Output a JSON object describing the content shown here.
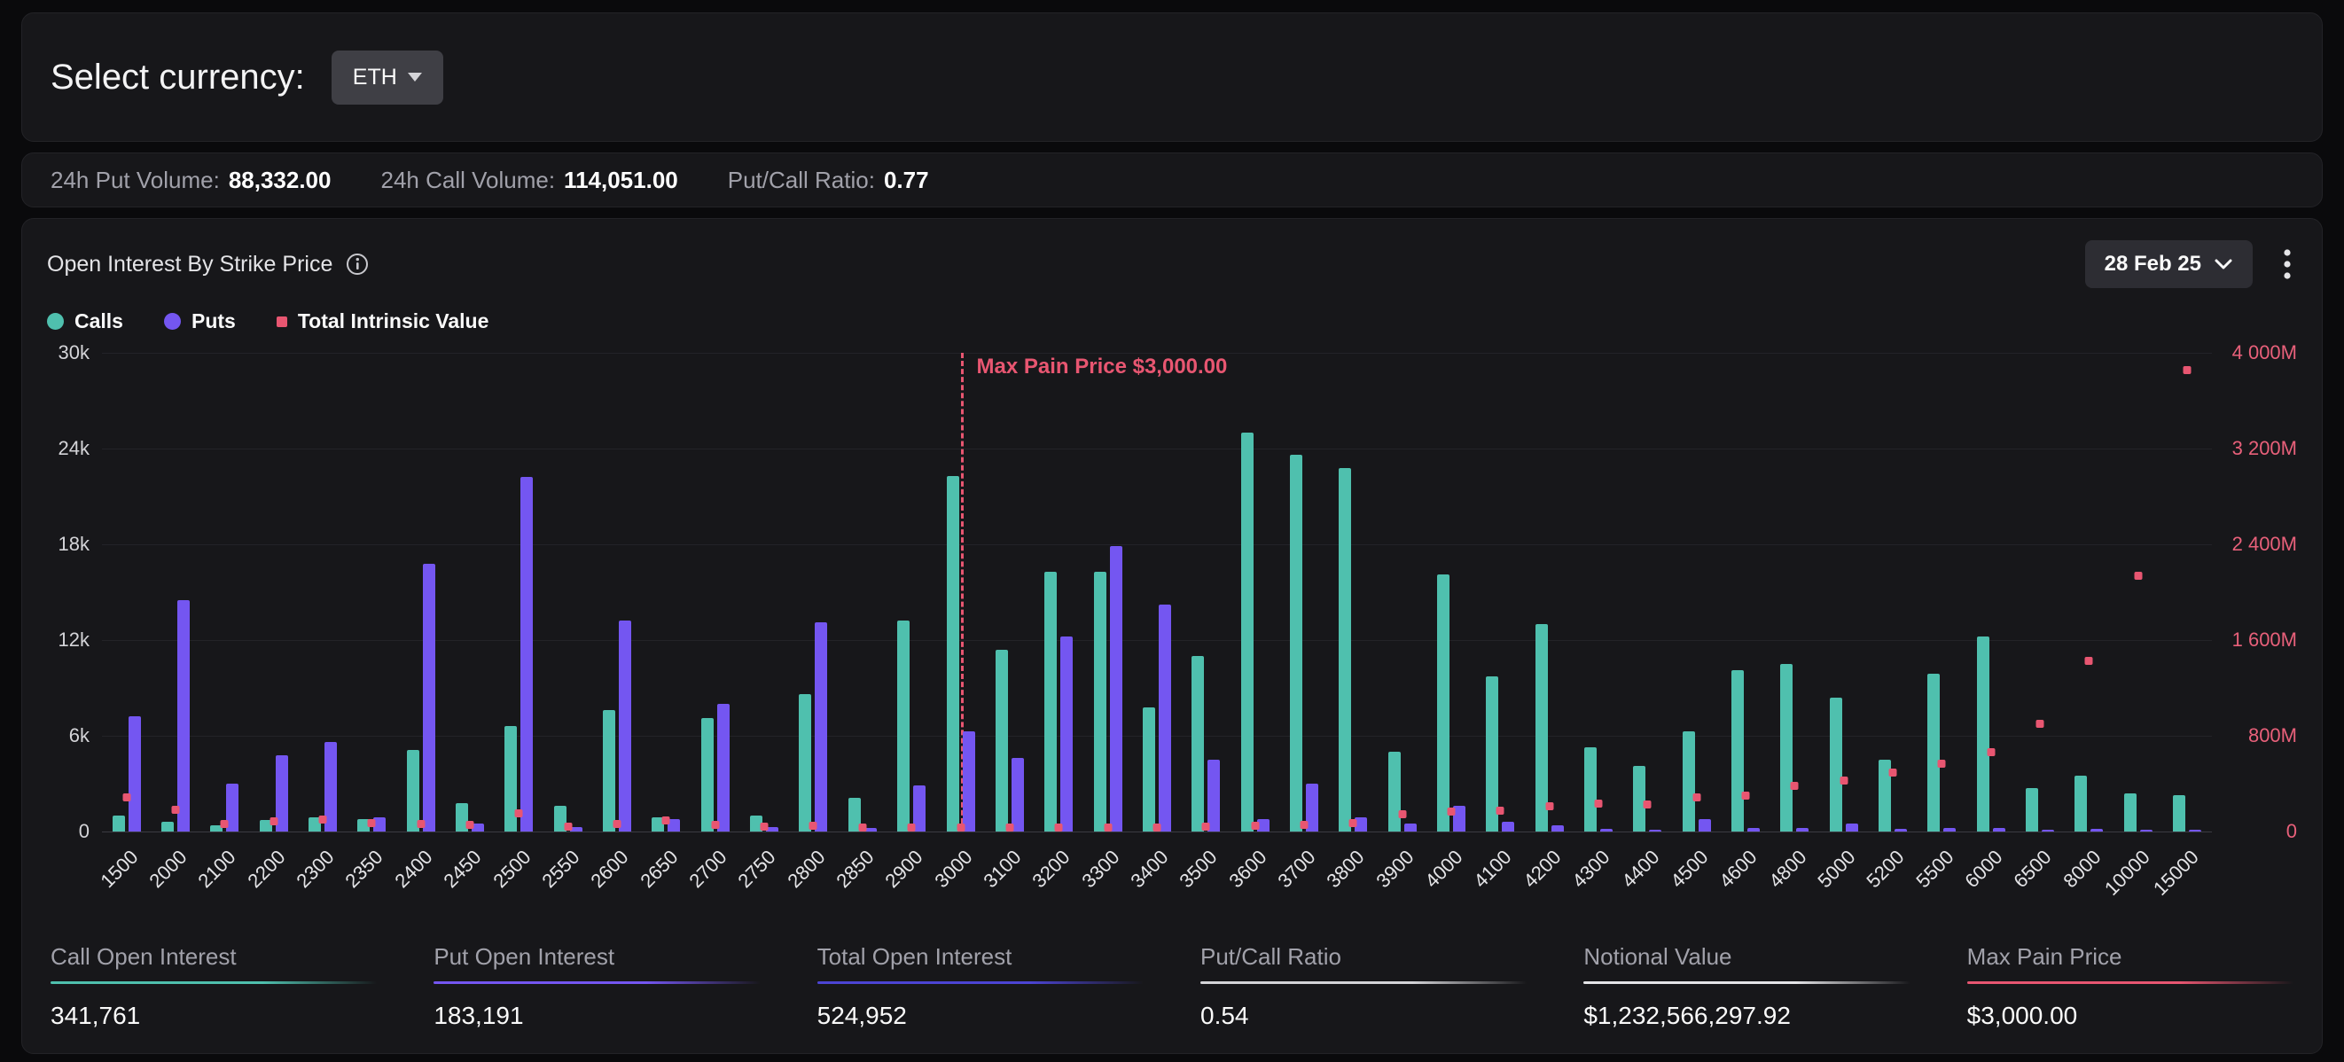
{
  "currency_panel": {
    "label": "Select currency:",
    "selected": "ETH"
  },
  "volume_stats": [
    {
      "label": "24h Put Volume:",
      "value": "88,332.00"
    },
    {
      "label": "24h Call Volume:",
      "value": "114,051.00"
    },
    {
      "label": "Put/Call Ratio:",
      "value": "0.77"
    }
  ],
  "chart_panel": {
    "title": "Open Interest By Strike Price",
    "info_icon": "info-circle-icon",
    "date_selector": "28 Feb 25",
    "menu_icon": "kebab-menu-icon",
    "legend": [
      {
        "label": "Calls",
        "color": "#4fc0ae",
        "shape": "circle"
      },
      {
        "label": "Puts",
        "color": "#7456f1",
        "shape": "circle"
      },
      {
        "label": "Total Intrinsic Value",
        "color": "#e85671",
        "shape": "square"
      }
    ]
  },
  "chart_data": {
    "type": "bar",
    "title": "Open Interest By Strike Price",
    "xlabel": "Strike Price",
    "categories": [
      "1500",
      "2000",
      "2100",
      "2200",
      "2300",
      "2350",
      "2400",
      "2450",
      "2500",
      "2550",
      "2600",
      "2650",
      "2700",
      "2750",
      "2800",
      "2850",
      "2900",
      "3000",
      "3100",
      "3200",
      "3300",
      "3400",
      "3500",
      "3600",
      "3700",
      "3800",
      "3900",
      "4000",
      "4100",
      "4200",
      "4300",
      "4400",
      "4500",
      "4600",
      "4800",
      "5000",
      "5200",
      "5500",
      "6000",
      "6500",
      "8000",
      "10000",
      "15000"
    ],
    "series": [
      {
        "name": "Calls",
        "type": "bar",
        "axis": "left",
        "color": "#4fc0ae",
        "values": [
          1000,
          600,
          400,
          700,
          900,
          800,
          5100,
          1800,
          6600,
          1600,
          7600,
          900,
          7100,
          1000,
          8600,
          2100,
          13200,
          22300,
          11400,
          16300,
          16300,
          7800,
          11000,
          25000,
          23600,
          22800,
          5000,
          16100,
          9700,
          13000,
          5300,
          4100,
          6300,
          10100,
          10500,
          8400,
          4500,
          9900,
          12200,
          2700,
          3500,
          2400,
          2300
        ]
      },
      {
        "name": "Puts",
        "type": "bar",
        "axis": "left",
        "color": "#7456f1",
        "values": [
          7200,
          14500,
          3000,
          4800,
          5600,
          900,
          16800,
          500,
          22200,
          300,
          13200,
          800,
          8000,
          300,
          13100,
          200,
          2900,
          6300,
          4600,
          12200,
          17900,
          14200,
          4500,
          800,
          3000,
          900,
          500,
          1600,
          600,
          400,
          150,
          100,
          800,
          200,
          250,
          500,
          150,
          200,
          250,
          100,
          150,
          100,
          80
        ]
      },
      {
        "name": "Total Intrinsic Value",
        "type": "point",
        "axis": "right",
        "color": "#e85671",
        "unit": "M",
        "values": [
          280,
          175,
          60,
          80,
          100,
          70,
          60,
          50,
          150,
          40,
          60,
          90,
          50,
          40,
          45,
          30,
          25,
          15,
          15,
          20,
          25,
          30,
          35,
          45,
          55,
          65,
          140,
          160,
          170,
          210,
          230,
          220,
          280,
          300,
          380,
          420,
          490,
          560,
          660,
          900,
          1420,
          2130,
          3850
        ]
      }
    ],
    "left_axis": {
      "max": 30000,
      "ticks": [
        0,
        6000,
        12000,
        18000,
        24000,
        30000
      ],
      "labels": [
        "0",
        "6k",
        "12k",
        "18k",
        "24k",
        "30k"
      ]
    },
    "right_axis": {
      "max": 4000,
      "ticks": [
        0,
        800,
        1600,
        2400,
        3200,
        4000
      ],
      "labels": [
        "0",
        "800M",
        "1 600M",
        "2 400M",
        "3 200M",
        "4 000M"
      ],
      "color": "#e8607a"
    },
    "annotation": {
      "label": "Max Pain Price $3,000.00",
      "category": "3000",
      "color": "#e85671"
    },
    "grid": true,
    "legend_position": "top-left"
  },
  "summary": [
    {
      "label": "Call Open Interest",
      "value": "341,761",
      "color": "#4fc0ae"
    },
    {
      "label": "Put Open Interest",
      "value": "183,191",
      "color": "#7456f1"
    },
    {
      "label": "Total Open Interest",
      "value": "524,952",
      "color": "#4c44d4"
    },
    {
      "label": "Put/Call Ratio",
      "value": "0.54",
      "color": "#d4d4d8"
    },
    {
      "label": "Notional Value",
      "value": "$1,232,566,297.92",
      "color": "#e4e4e7"
    },
    {
      "label": "Max Pain Price",
      "value": "$3,000.00",
      "color": "#e85671"
    }
  ]
}
